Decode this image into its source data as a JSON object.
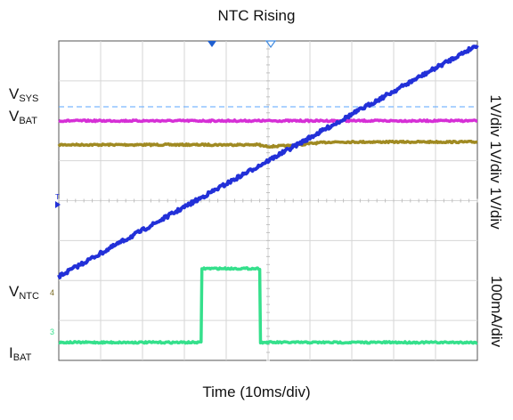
{
  "chart_data": {
    "type": "line",
    "title": "NTC Rising",
    "xlabel": "Time (10ms/div)",
    "x_unit": "ms",
    "xlim": [
      0,
      100
    ],
    "divisions": {
      "x": 10,
      "y": 8
    },
    "grid": true,
    "reference_line": {
      "name": "VSYS",
      "style": "dashed",
      "color": "#5aa6ff"
    },
    "channel_scales": [
      "1V/div",
      "1V/div",
      "1V/div",
      "100mA/div"
    ],
    "series": [
      {
        "name": "VSYS",
        "label_main": "V",
        "label_sub": "SYS",
        "color": "#a08a22",
        "x": [
          0,
          48,
          48.2,
          49.5,
          51,
          56,
          60,
          65,
          75,
          85,
          100
        ],
        "y_div": [
          2.6,
          2.6,
          2.62,
          2.64,
          2.64,
          2.62,
          2.57,
          2.53,
          2.53,
          2.53,
          2.53
        ]
      },
      {
        "name": "VBAT",
        "label_main": "V",
        "label_sub": "BAT",
        "color": "#d62fd6",
        "x": [
          0,
          100
        ],
        "y_div": [
          2.0,
          2.0
        ]
      },
      {
        "name": "VNTC",
        "label_main": "V",
        "label_sub": "NTC",
        "color": "#2230d8",
        "x": [
          0,
          100
        ],
        "y_div": [
          5.9,
          0.1
        ]
      },
      {
        "name": "IBAT",
        "label_main": "I",
        "label_sub": "BAT",
        "color": "#35e08c",
        "x": [
          0,
          34,
          34.2,
          48,
          48.2,
          100
        ],
        "y_div": [
          7.55,
          7.55,
          5.7,
          5.7,
          7.55,
          7.55
        ]
      }
    ]
  },
  "markers": {
    "top_trigger_icon": "triangle-down-marker",
    "ch_ntc_marker": "4",
    "ch_ibat_marker": "3"
  }
}
